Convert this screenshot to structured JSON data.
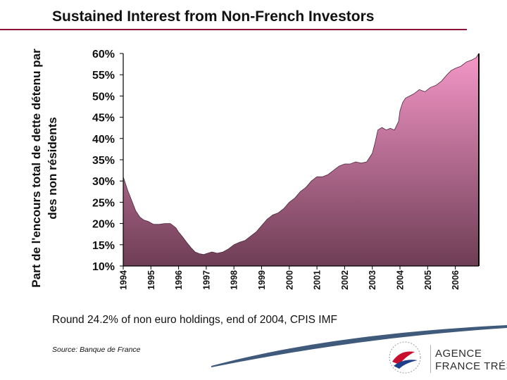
{
  "slide": {
    "title": "Sustained Interest from Non-French Investors",
    "footnote_prefix": "Round ",
    "footnote_value": "24.2%",
    "footnote_suffix": " of non euro holdings, end of 2004, CPIS IMF",
    "source": "Source: Banque de France"
  },
  "logo": {
    "line1": "AGENCE",
    "line2": "FRANCE TRÉSOR",
    "colors": {
      "red": "#c8102e",
      "blue": "#1f3f8a",
      "text": "#2b2b2b"
    }
  },
  "colors": {
    "accent_rule": "#8a1538",
    "area_top": "#f597c8",
    "area_bottom": "#6e3d55",
    "swoosh": "#3f5a7a"
  },
  "chart_data": {
    "type": "area",
    "title": "Sustained Interest from Non-French Investors",
    "ylabel_lines": [
      "Part de l'encours total de dette détenu par",
      "des non résidents"
    ],
    "xlabel": "",
    "grid": false,
    "legend": "none",
    "ylim": [
      10,
      60
    ],
    "xlim": [
      1994,
      2006.85
    ],
    "y_ticks": [
      {
        "value": 10,
        "label": "10%"
      },
      {
        "value": 15,
        "label": "15%"
      },
      {
        "value": 20,
        "label": "20%"
      },
      {
        "value": 25,
        "label": "25%"
      },
      {
        "value": 30,
        "label": "30%"
      },
      {
        "value": 35,
        "label": "35%"
      },
      {
        "value": 40,
        "label": "40%"
      },
      {
        "value": 45,
        "label": "45%"
      },
      {
        "value": 50,
        "label": "50%"
      },
      {
        "value": 55,
        "label": "55%"
      },
      {
        "value": 60,
        "label": "60%"
      }
    ],
    "x_ticks": [
      {
        "value": 1994,
        "label": "1994"
      },
      {
        "value": 1995,
        "label": "1995"
      },
      {
        "value": 1996,
        "label": "1996"
      },
      {
        "value": 1997,
        "label": "1997"
      },
      {
        "value": 1998,
        "label": "1998"
      },
      {
        "value": 1999,
        "label": "1999"
      },
      {
        "value": 2000,
        "label": "2000"
      },
      {
        "value": 2001,
        "label": "2001"
      },
      {
        "value": 2002,
        "label": "2002"
      },
      {
        "value": 2003,
        "label": "2003"
      },
      {
        "value": 2004,
        "label": "2004"
      },
      {
        "value": 2005,
        "label": "2005"
      },
      {
        "value": 2006,
        "label": "2006"
      }
    ],
    "series": [
      {
        "x": [
          1994.0,
          1994.15,
          1994.3,
          1994.45,
          1994.6,
          1994.75,
          1994.9,
          1995.1,
          1995.3,
          1995.5,
          1995.7,
          1995.9,
          1996.0,
          1996.15,
          1996.3,
          1996.45,
          1996.6,
          1996.75,
          1996.9,
          1997.0,
          1997.2,
          1997.4,
          1997.6,
          1997.8,
          1998.0,
          1998.2,
          1998.4,
          1998.6,
          1998.8,
          1999.0,
          1999.2,
          1999.4,
          1999.6,
          1999.8,
          2000.0,
          2000.2,
          2000.4,
          2000.6,
          2000.8,
          2001.0,
          2001.2,
          2001.4,
          2001.6,
          2001.8,
          2002.0,
          2002.2,
          2002.4,
          2002.6,
          2002.8,
          2003.0,
          2003.1,
          2003.2,
          2003.35,
          2003.5,
          2003.65,
          2003.8,
          2003.95,
          2004.0,
          2004.1,
          2004.2,
          2004.35,
          2004.5,
          2004.7,
          2004.9,
          2005.1,
          2005.3,
          2005.5,
          2005.7,
          2005.85,
          2006.0,
          2006.2,
          2006.4,
          2006.6,
          2006.75,
          2006.85
        ],
        "values": [
          31.0,
          28.0,
          25.5,
          23.0,
          21.5,
          20.8,
          20.5,
          19.8,
          19.8,
          20.0,
          20.0,
          19.0,
          18.0,
          16.8,
          15.5,
          14.3,
          13.3,
          12.9,
          12.7,
          12.9,
          13.3,
          13.0,
          13.3,
          14.0,
          15.0,
          15.6,
          16.0,
          17.0,
          18.0,
          19.5,
          21.0,
          22.0,
          22.5,
          23.5,
          25.0,
          26.0,
          27.5,
          28.5,
          30.0,
          31.0,
          31.0,
          31.5,
          32.5,
          33.5,
          34.0,
          34.0,
          34.5,
          34.2,
          34.5,
          36.5,
          39.0,
          42.0,
          42.6,
          42.0,
          42.4,
          42.0,
          44.0,
          46.5,
          48.5,
          49.5,
          50.0,
          50.5,
          51.5,
          51.0,
          52.0,
          52.5,
          53.5,
          55.0,
          56.0,
          56.5,
          57.0,
          58.0,
          58.5,
          59.0,
          60.0
        ]
      }
    ]
  }
}
